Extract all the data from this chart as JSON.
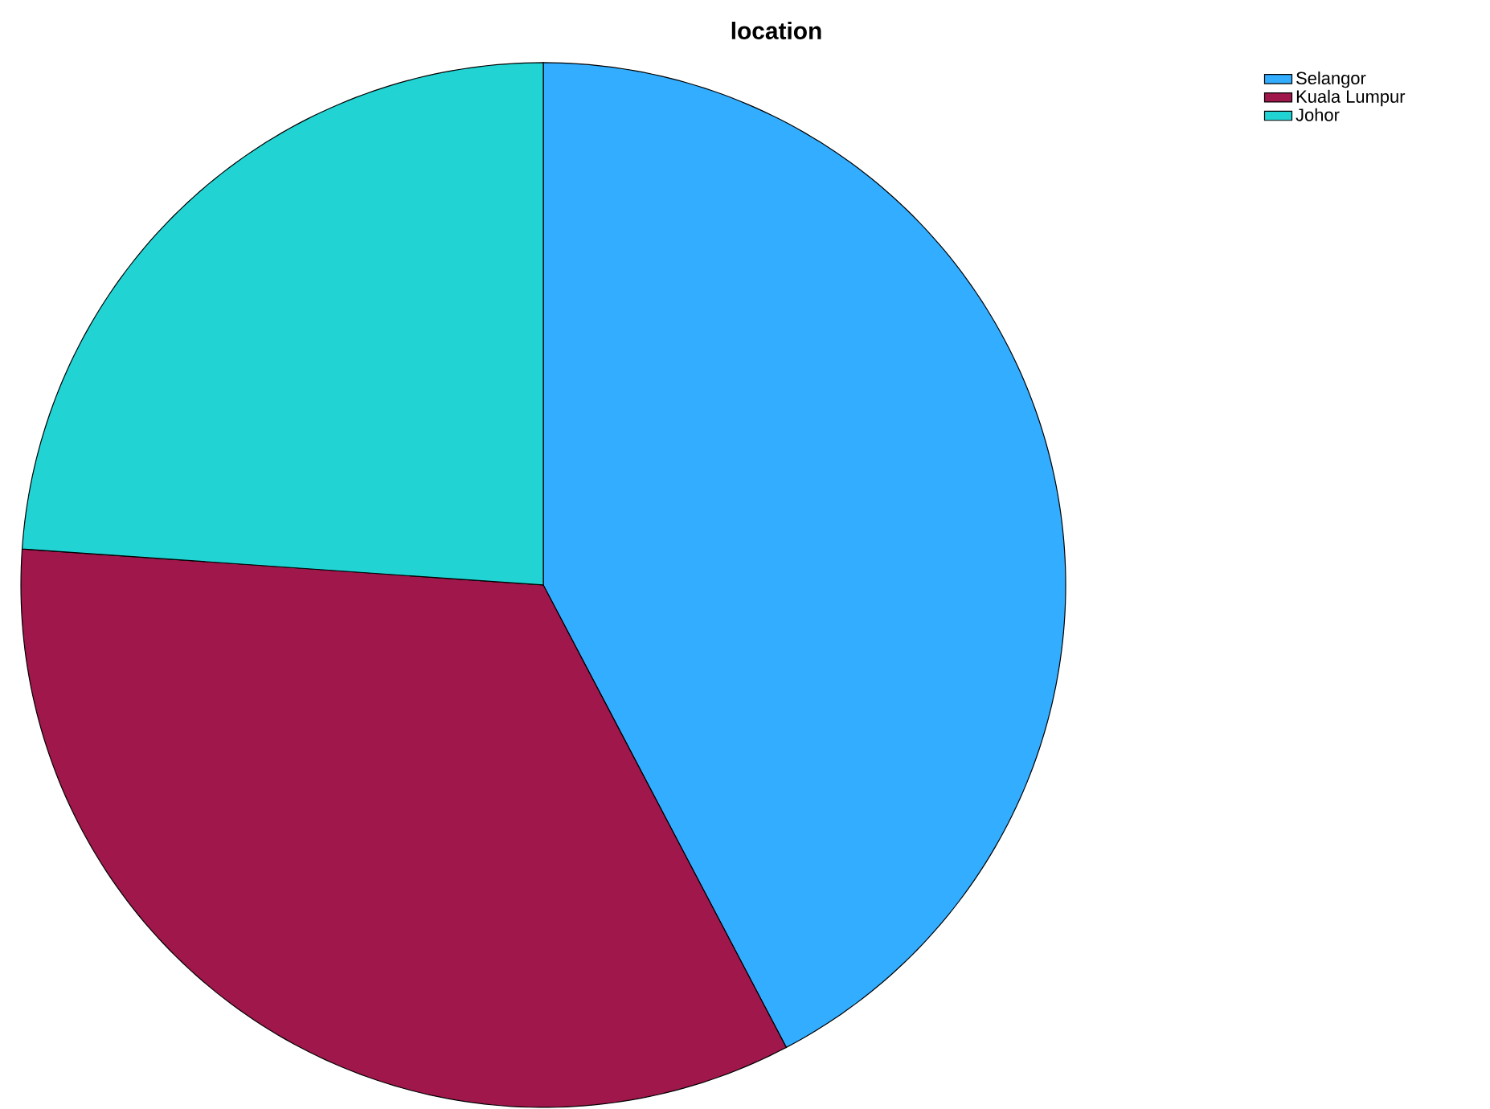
{
  "chart_data": {
    "type": "pie",
    "title": "location",
    "categories": [
      "Selangor",
      "Kuala Lumpur",
      "Johor"
    ],
    "values": [
      42.3,
      33.8,
      23.9
    ],
    "colors": [
      "#33adff",
      "#a0174b",
      "#22d3d3"
    ],
    "legend": "top right"
  }
}
